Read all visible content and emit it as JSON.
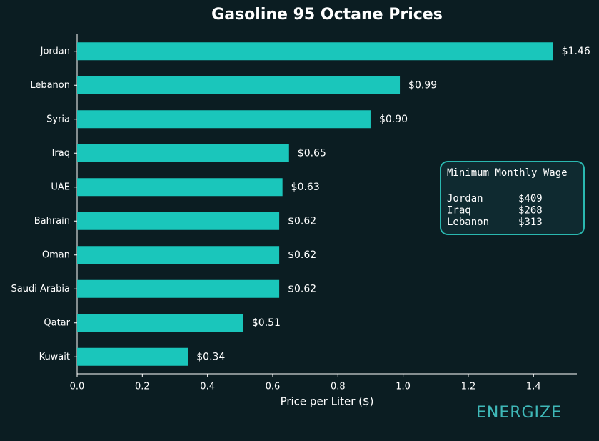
{
  "chart_data": {
    "type": "barh",
    "title": "Gasoline 95 Octane Prices",
    "xlabel": "Price per Liter ($)",
    "categories": [
      "Jordan",
      "Lebanon",
      "Syria",
      "Iraq",
      "UAE",
      "Bahrain",
      "Oman",
      "Saudi Arabia",
      "Qatar",
      "Kuwait"
    ],
    "values": [
      1.46,
      0.99,
      0.9,
      0.65,
      0.63,
      0.62,
      0.62,
      0.62,
      0.51,
      0.34
    ],
    "value_labels": [
      "$1.46",
      "$0.99",
      "$0.90",
      "$0.65",
      "$0.63",
      "$0.62",
      "$0.62",
      "$0.62",
      "$0.51",
      "$0.34"
    ],
    "color": "#1ac6bb",
    "xlim": [
      0,
      1.533
    ],
    "xticks": [
      {
        "value": 0,
        "label": "0.0"
      },
      {
        "value": 0.2,
        "label": "0.2"
      },
      {
        "value": 0.4,
        "label": "0.4"
      },
      {
        "value": 0.6,
        "label": "0.6"
      },
      {
        "value": 0.8,
        "label": "0.8"
      },
      {
        "value": 1,
        "label": "1.0"
      },
      {
        "value": 1.2,
        "label": "1.2"
      },
      {
        "value": 1.4,
        "label": "1.4"
      }
    ],
    "grid": false,
    "annotation": {
      "title": "Minimum Monthly Wage",
      "rows": [
        [
          "Jordan",
          "$409"
        ],
        [
          "Iraq",
          "$268"
        ],
        [
          "Lebanon",
          "$313"
        ]
      ]
    },
    "logo": "ENERGIZE"
  }
}
